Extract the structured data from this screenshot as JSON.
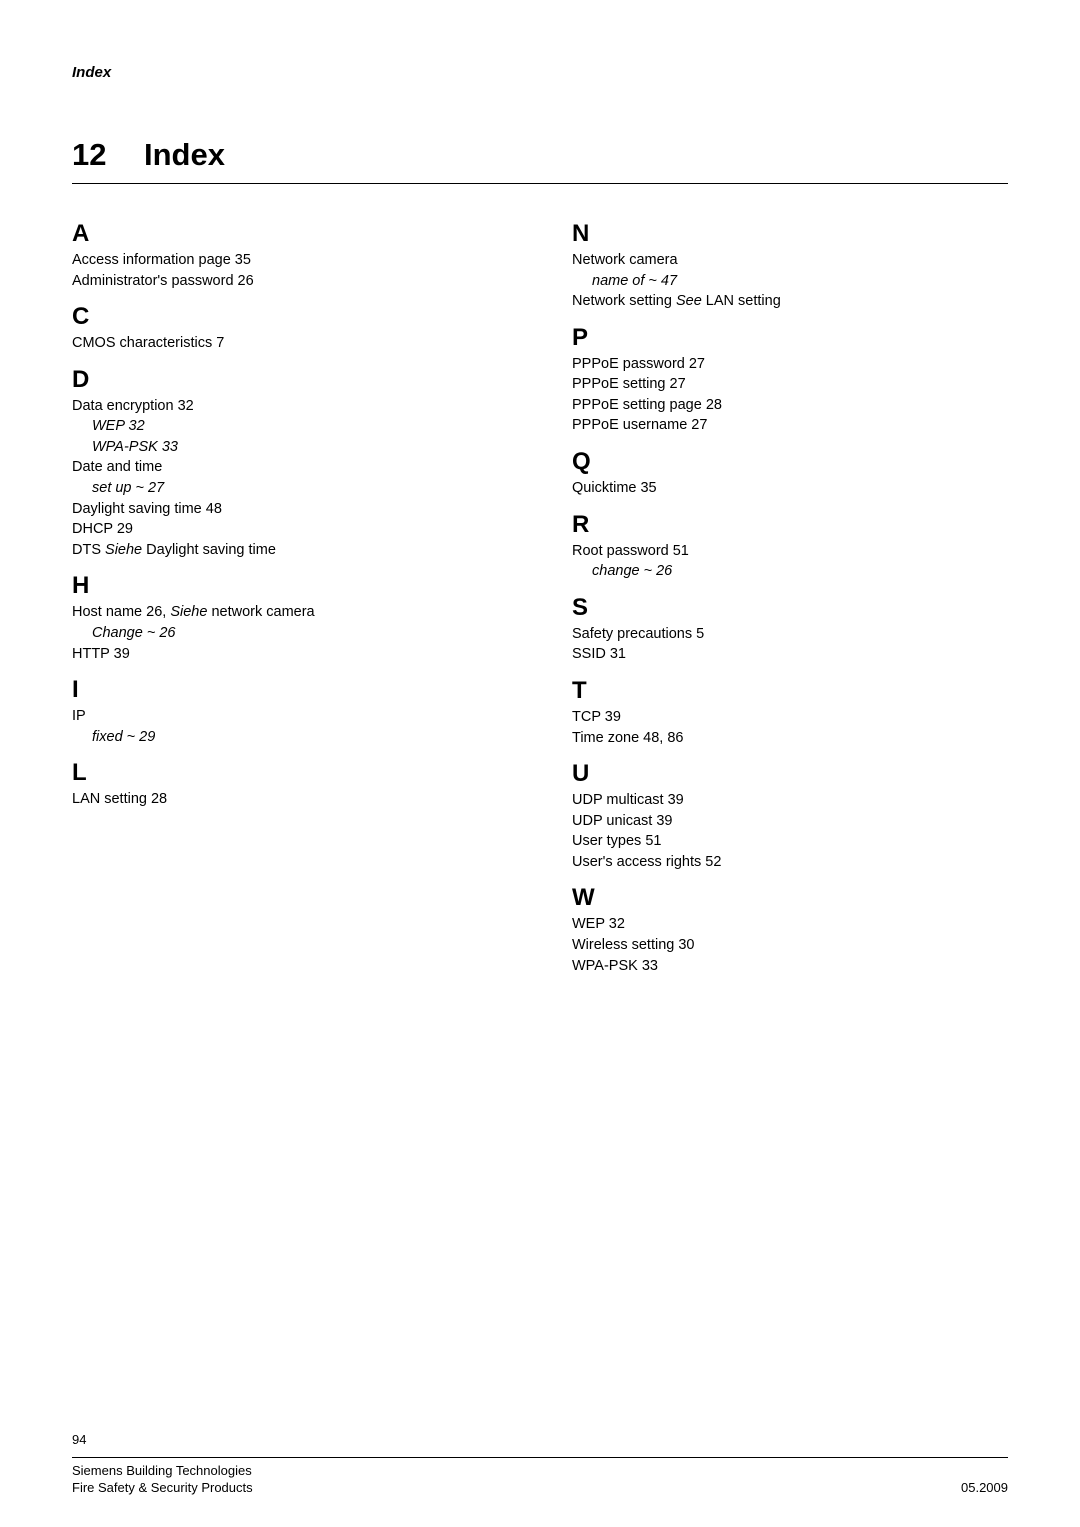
{
  "running_head": "Index",
  "chapter": {
    "number": "12",
    "title": "Index"
  },
  "left": {
    "A": [
      {
        "t": "Access information page  35"
      },
      {
        "t": "Administrator's password  26"
      }
    ],
    "C": [
      {
        "t": "CMOS characteristics  7"
      }
    ],
    "D": [
      {
        "t": "Data encryption  32"
      },
      {
        "t": "WEP  32",
        "sub": true
      },
      {
        "t": "WPA-PSK  33",
        "sub": true
      },
      {
        "t": "Date and time"
      },
      {
        "t": "set up ~  27",
        "sub": true
      },
      {
        "t": "Daylight saving time  48"
      },
      {
        "t": "DHCP  29"
      },
      {
        "t": "DTS  ",
        "xrefWord": "Siehe",
        "xrefRest": " Daylight saving time"
      }
    ],
    "H": [
      {
        "t": "Host name  26, ",
        "xrefWord": "Siehe",
        "xrefRest": " network camera"
      },
      {
        "t": "Change ~  26",
        "sub": true
      },
      {
        "t": "HTTP  39"
      }
    ],
    "I": [
      {
        "t": "IP"
      },
      {
        "t": "fixed  ~  29",
        "sub": true
      }
    ],
    "L": [
      {
        "t": "LAN setting  28"
      }
    ]
  },
  "right": {
    "N": [
      {
        "t": "Network camera"
      },
      {
        "t": "name of ~  47",
        "sub": true
      },
      {
        "t": "Network setting  ",
        "xrefWord": "See",
        "xrefRest": " LAN setting"
      }
    ],
    "P": [
      {
        "t": "PPPoE password  27"
      },
      {
        "t": "PPPoE setting  27"
      },
      {
        "t": "PPPoE setting page  28"
      },
      {
        "t": "PPPoE username  27"
      }
    ],
    "Q": [
      {
        "t": "Quicktime  35"
      }
    ],
    "R": [
      {
        "t": "Root password  51"
      },
      {
        "t": "change ~  26",
        "sub": true
      }
    ],
    "S": [
      {
        "t": "Safety precautions  5"
      },
      {
        "t": "SSID  31"
      }
    ],
    "T": [
      {
        "t": "TCP  39"
      },
      {
        "t": "Time zone  48, 86"
      }
    ],
    "U": [
      {
        "t": "UDP multicast  39"
      },
      {
        "t": "UDP unicast  39"
      },
      {
        "t": "User types  51"
      },
      {
        "t": "User's access rights  52"
      }
    ],
    "W": [
      {
        "t": "WEP  32"
      },
      {
        "t": "Wireless setting  30"
      },
      {
        "t": "WPA-PSK  33"
      }
    ]
  },
  "footer": {
    "page_no": "94",
    "line1_left": "Siemens Building Technologies",
    "line2_left": "Fire Safety & Security Products",
    "line2_right": "05.2009"
  }
}
